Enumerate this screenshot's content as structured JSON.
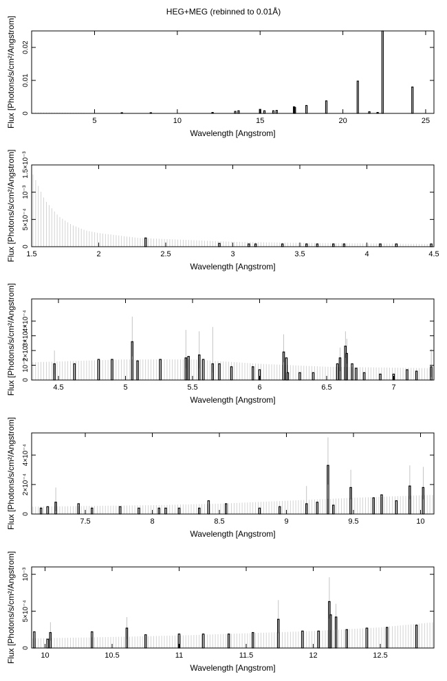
{
  "title": "HEG+MEG (rebinned to 0.01Å)",
  "chart_data": [
    {
      "type": "bar",
      "xlabel": "Wavelength [Angstrom]",
      "ylabel": "Flux [Photons/s/cm²/Angstrom]",
      "xlim": [
        1.2,
        25.5
      ],
      "ylim": [
        0,
        0.025
      ],
      "xticks": [
        5,
        10,
        15,
        20,
        25
      ],
      "xticklabels": [
        "5",
        "10",
        "15",
        "20",
        "25"
      ],
      "yticks": [
        0,
        0.01,
        0.02
      ],
      "yticklabels": [
        "0",
        "0.01",
        "0.02"
      ],
      "continuum": [
        [
          1.5,
          0.0003
        ],
        [
          5,
          0.0001
        ],
        [
          25.5,
          0.0001
        ]
      ],
      "lines": [
        {
          "x": 6.65,
          "y": 0.0002
        },
        {
          "x": 8.4,
          "y": 0.0002
        },
        {
          "x": 12.13,
          "y": 0.0003
        },
        {
          "x": 13.5,
          "y": 0.0006
        },
        {
          "x": 13.7,
          "y": 0.0008
        },
        {
          "x": 15.0,
          "y": 0.0012
        },
        {
          "x": 15.26,
          "y": 0.0008
        },
        {
          "x": 15.8,
          "y": 0.0008
        },
        {
          "x": 16.0,
          "y": 0.0009
        },
        {
          "x": 17.05,
          "y": 0.002
        },
        {
          "x": 17.1,
          "y": 0.0018
        },
        {
          "x": 17.8,
          "y": 0.0024
        },
        {
          "x": 19.0,
          "y": 0.0038
        },
        {
          "x": 20.9,
          "y": 0.0098
        },
        {
          "x": 21.6,
          "y": 0.0005
        },
        {
          "x": 22.1,
          "y": 0.0003
        },
        {
          "x": 22.4,
          "y": 0.025
        },
        {
          "x": 24.2,
          "y": 0.008
        }
      ],
      "error_bars": []
    },
    {
      "type": "bar",
      "xlabel": "Wavelength [Angstrom]",
      "ylabel": "Flux [Photons/s/cm²/Angstrom]",
      "xlim": [
        1.5,
        4.5
      ],
      "ylim": [
        0,
        0.0015
      ],
      "xticks": [
        1.5,
        2,
        2.5,
        3,
        3.5,
        4,
        4.5
      ],
      "xticklabels": [
        "1.5",
        "2",
        "2.5",
        "3",
        "3.5",
        "4",
        "4.5"
      ],
      "yticks": [
        0,
        0.0005,
        0.001,
        0.0015
      ],
      "yticklabels": [
        "0",
        "5×10⁻⁴",
        "10⁻³",
        "1.5×10⁻³"
      ],
      "continuum": [
        [
          1.5,
          0.00138
        ],
        [
          1.6,
          0.00085
        ],
        [
          1.7,
          0.00056
        ],
        [
          1.8,
          0.0004
        ],
        [
          1.9,
          0.0003
        ],
        [
          2.0,
          0.00025
        ],
        [
          2.3,
          0.00016
        ],
        [
          3.0,
          9e-05
        ],
        [
          3.5,
          7e-05
        ],
        [
          4.5,
          5e-05
        ]
      ],
      "lines": [
        {
          "x": 2.35,
          "y": 0.00016
        },
        {
          "x": 2.9,
          "y": 6e-05
        },
        {
          "x": 3.12,
          "y": 5e-05
        },
        {
          "x": 3.17,
          "y": 5e-05
        },
        {
          "x": 3.37,
          "y": 5e-05
        },
        {
          "x": 3.55,
          "y": 5e-05
        },
        {
          "x": 3.63,
          "y": 5e-05
        },
        {
          "x": 3.75,
          "y": 5e-05
        },
        {
          "x": 3.83,
          "y": 5e-05
        },
        {
          "x": 4.1,
          "y": 5e-05
        },
        {
          "x": 4.22,
          "y": 5e-05
        },
        {
          "x": 4.48,
          "y": 5e-05
        }
      ],
      "error_bars": []
    },
    {
      "type": "bar",
      "xlabel": "Wavelength [Angstrom]",
      "ylabel": "Flux [Photons/s/cm²/Angstrom]",
      "xlim": [
        4.3,
        7.3
      ],
      "ylim": [
        0,
        0.00055
      ],
      "xticks": [
        4.5,
        5,
        5.5,
        6,
        6.5,
        7
      ],
      "xticklabels": [
        "4.5",
        "5",
        "5.5",
        "6",
        "6.5",
        "7"
      ],
      "yticks": [
        0,
        0.0001,
        0.0002,
        0.0003,
        0.0004
      ],
      "yticklabels": [
        "0",
        "10⁻⁴",
        "2×10⁻⁴",
        "3×10⁻⁴",
        "4×10⁻⁴"
      ],
      "continuum": [
        [
          4.3,
          0.00012
        ],
        [
          5.0,
          0.00014
        ],
        [
          5.5,
          0.00014
        ],
        [
          6.0,
          0.00011
        ],
        [
          6.5,
          9e-05
        ],
        [
          7.3,
          8e-05
        ]
      ],
      "lines": [
        {
          "x": 4.47,
          "y": 0.00011
        },
        {
          "x": 4.62,
          "y": 0.00011
        },
        {
          "x": 4.8,
          "y": 0.00014
        },
        {
          "x": 4.9,
          "y": 0.00014
        },
        {
          "x": 5.05,
          "y": 0.00026
        },
        {
          "x": 5.09,
          "y": 0.00013
        },
        {
          "x": 5.26,
          "y": 0.00014
        },
        {
          "x": 5.45,
          "y": 0.00015
        },
        {
          "x": 5.47,
          "y": 0.00016
        },
        {
          "x": 5.55,
          "y": 0.00017
        },
        {
          "x": 5.58,
          "y": 0.00014
        },
        {
          "x": 5.65,
          "y": 0.00011
        },
        {
          "x": 5.7,
          "y": 0.00011
        },
        {
          "x": 5.79,
          "y": 9e-05
        },
        {
          "x": 5.95,
          "y": 9e-05
        },
        {
          "x": 6.0,
          "y": 7e-05
        },
        {
          "x": 6.18,
          "y": 0.00019
        },
        {
          "x": 6.2,
          "y": 0.00015
        },
        {
          "x": 6.21,
          "y": 5e-05
        },
        {
          "x": 6.3,
          "y": 5e-05
        },
        {
          "x": 6.4,
          "y": 5e-05
        },
        {
          "x": 6.58,
          "y": 0.00011
        },
        {
          "x": 6.6,
          "y": 0.00015
        },
        {
          "x": 6.64,
          "y": 0.00023
        },
        {
          "x": 6.65,
          "y": 0.00018
        },
        {
          "x": 6.69,
          "y": 0.00011
        },
        {
          "x": 6.72,
          "y": 8e-05
        },
        {
          "x": 6.78,
          "y": 5e-05
        },
        {
          "x": 6.9,
          "y": 4e-05
        },
        {
          "x": 7.0,
          "y": 4e-05
        },
        {
          "x": 7.1,
          "y": 7e-05
        },
        {
          "x": 7.17,
          "y": 6e-05
        },
        {
          "x": 7.28,
          "y": 9e-05
        }
      ],
      "error_bars": [
        {
          "x": 5.05,
          "lo": 0.00016,
          "hi": 0.00043
        },
        {
          "x": 4.47,
          "lo": 4e-05,
          "hi": 0.0002
        },
        {
          "x": 5.45,
          "lo": 8e-05,
          "hi": 0.00034
        },
        {
          "x": 5.55,
          "lo": 8e-05,
          "hi": 0.00033
        },
        {
          "x": 5.65,
          "lo": 5e-05,
          "hi": 0.00036
        },
        {
          "x": 6.18,
          "lo": 0.00012,
          "hi": 0.00031
        },
        {
          "x": 6.64,
          "lo": 0.00015,
          "hi": 0.00033
        },
        {
          "x": 6.65,
          "lo": 0.00011,
          "hi": 0.00028
        },
        {
          "x": 6.6,
          "lo": 6e-05,
          "hi": 0.00022
        },
        {
          "x": 7.28,
          "lo": 2e-05,
          "hi": 0.00021
        }
      ]
    },
    {
      "type": "bar",
      "xlabel": "Wavelength [Angstrom]",
      "ylabel": "Flux [Photons/s/cm²/Angstrom]",
      "xlim": [
        7.1,
        10.1
      ],
      "ylim": [
        0,
        0.00055
      ],
      "xticks": [
        7.5,
        8,
        8.5,
        9,
        9.5,
        10
      ],
      "xticklabels": [
        "7.5",
        "8",
        "8.5",
        "9",
        "9.5",
        "10"
      ],
      "yticks": [
        0,
        0.0002,
        0.0004
      ],
      "yticklabels": [
        "0",
        "2×10⁻⁴",
        "4×10⁻⁴"
      ],
      "continuum": [
        [
          7.1,
          5e-05
        ],
        [
          8.0,
          6e-05
        ],
        [
          8.5,
          7e-05
        ],
        [
          9.0,
          9e-05
        ],
        [
          9.5,
          0.00011
        ],
        [
          10.1,
          0.00013
        ]
      ],
      "lines": [
        {
          "x": 7.17,
          "y": 4e-05
        },
        {
          "x": 7.22,
          "y": 5e-05
        },
        {
          "x": 7.28,
          "y": 8e-05
        },
        {
          "x": 7.45,
          "y": 7e-05
        },
        {
          "x": 7.55,
          "y": 4e-05
        },
        {
          "x": 7.76,
          "y": 5e-05
        },
        {
          "x": 7.9,
          "y": 4e-05
        },
        {
          "x": 8.05,
          "y": 4e-05
        },
        {
          "x": 8.1,
          "y": 4e-05
        },
        {
          "x": 8.2,
          "y": 4e-05
        },
        {
          "x": 8.35,
          "y": 4e-05
        },
        {
          "x": 8.42,
          "y": 9e-05
        },
        {
          "x": 8.55,
          "y": 7e-05
        },
        {
          "x": 8.8,
          "y": 4e-05
        },
        {
          "x": 8.95,
          "y": 5e-05
        },
        {
          "x": 9.15,
          "y": 7e-05
        },
        {
          "x": 9.23,
          "y": 8e-05
        },
        {
          "x": 9.31,
          "y": 0.00033
        },
        {
          "x": 9.35,
          "y": 6e-05
        },
        {
          "x": 9.48,
          "y": 0.00018
        },
        {
          "x": 9.65,
          "y": 0.00011
        },
        {
          "x": 9.71,
          "y": 0.00013
        },
        {
          "x": 9.82,
          "y": 9e-05
        },
        {
          "x": 9.92,
          "y": 0.00019
        },
        {
          "x": 10.02,
          "y": 0.00018
        }
      ],
      "error_bars": [
        {
          "x": 9.31,
          "lo": 0.0002,
          "hi": 0.00052
        },
        {
          "x": 9.48,
          "lo": 0.0001,
          "hi": 0.0003
        },
        {
          "x": 9.92,
          "lo": 0.0001,
          "hi": 0.00033
        },
        {
          "x": 10.02,
          "lo": 0.0001,
          "hi": 0.00032
        },
        {
          "x": 9.15,
          "lo": 2e-05,
          "hi": 0.00019
        },
        {
          "x": 7.28,
          "lo": 2e-05,
          "hi": 0.00018
        }
      ]
    },
    {
      "type": "bar",
      "xlabel": "Wavelength [Angstrom]",
      "ylabel": "Flux [Photons/s/cm²/Angstrom]",
      "xlim": [
        9.9,
        12.9
      ],
      "ylim": [
        0,
        0.0011
      ],
      "xticks": [
        10,
        10.5,
        11,
        11.5,
        12,
        12.5
      ],
      "xticklabels": [
        "10",
        "10.5",
        "11",
        "11.5",
        "12",
        "12.5"
      ],
      "yticks": [
        0,
        0.0005,
        0.001
      ],
      "yticklabels": [
        "0",
        "5×10⁻⁴",
        "10⁻³"
      ],
      "continuum": [
        [
          9.9,
          0.00013
        ],
        [
          10.5,
          0.00015
        ],
        [
          11.0,
          0.00017
        ],
        [
          11.5,
          0.0002
        ],
        [
          12.0,
          0.00023
        ],
        [
          12.5,
          0.00028
        ],
        [
          12.9,
          0.00035
        ]
      ],
      "lines": [
        {
          "x": 9.92,
          "y": 0.00022
        },
        {
          "x": 10.02,
          "y": 0.00012
        },
        {
          "x": 10.04,
          "y": 0.00021
        },
        {
          "x": 10.35,
          "y": 0.00022
        },
        {
          "x": 10.61,
          "y": 0.00027
        },
        {
          "x": 10.75,
          "y": 0.00018
        },
        {
          "x": 11.0,
          "y": 0.00019
        },
        {
          "x": 11.18,
          "y": 0.00019
        },
        {
          "x": 11.37,
          "y": 0.00019
        },
        {
          "x": 11.55,
          "y": 0.00021
        },
        {
          "x": 11.74,
          "y": 0.00039
        },
        {
          "x": 11.92,
          "y": 0.00023
        },
        {
          "x": 12.04,
          "y": 0.00023
        },
        {
          "x": 12.12,
          "y": 0.00063
        },
        {
          "x": 12.13,
          "y": 0.00045
        },
        {
          "x": 12.17,
          "y": 0.00042
        },
        {
          "x": 12.25,
          "y": 0.00025
        },
        {
          "x": 12.4,
          "y": 0.00027
        },
        {
          "x": 12.55,
          "y": 0.00028
        },
        {
          "x": 12.77,
          "y": 0.00031
        }
      ],
      "error_bars": [
        {
          "x": 12.12,
          "lo": 0.0004,
          "hi": 0.00096
        },
        {
          "x": 11.74,
          "lo": 0.0002,
          "hi": 0.00065
        },
        {
          "x": 12.17,
          "lo": 0.00025,
          "hi": 0.0006
        },
        {
          "x": 10.04,
          "lo": 0.0001,
          "hi": 0.00035
        },
        {
          "x": 10.61,
          "lo": 0.00012,
          "hi": 0.00042
        }
      ]
    }
  ]
}
